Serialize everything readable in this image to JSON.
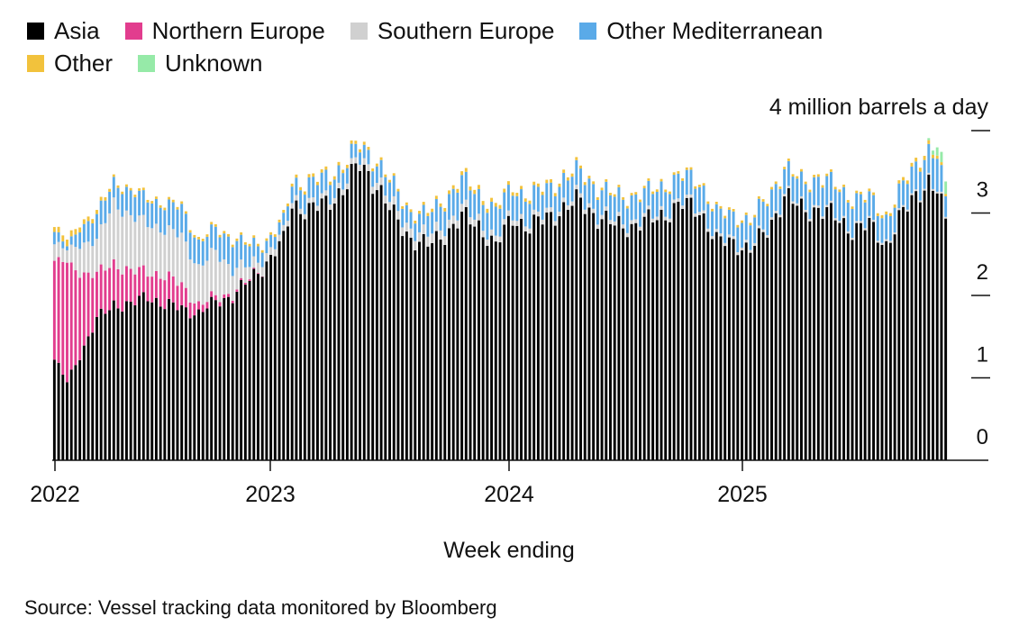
{
  "legend": [
    {
      "label": "Asia",
      "color": "#000000"
    },
    {
      "label": "Northern Europe",
      "color": "#e23d8e"
    },
    {
      "label": "Southern Europe",
      "color": "#d0d0d0"
    },
    {
      "label": "Other Mediterranean",
      "color": "#5aaae8"
    },
    {
      "label": "Other",
      "color": "#f2c23c"
    },
    {
      "label": "Unknown",
      "color": "#96eaa8"
    }
  ],
  "source": "Source: Vessel tracking data monitored by Bloomberg",
  "chart_data": {
    "type": "bar",
    "stacked": true,
    "title": "",
    "unit_label": "4 million barrels a day",
    "xlabel": "Week ending",
    "ylabel": "",
    "ylim": [
      0,
      4
    ],
    "yticks": [
      0,
      1,
      2,
      3,
      4
    ],
    "ytick_labels": [
      "0",
      "1",
      "2",
      "3",
      ""
    ],
    "xtick_labels": [
      "2022",
      "2023",
      "2024",
      "2025"
    ],
    "x_range": [
      "2022-01",
      "2025-11"
    ],
    "grid": false,
    "legend_position": "top-left",
    "series": [
      {
        "name": "Asia",
        "color": "#000000",
        "anchors": [
          [
            0,
            1.22
          ],
          [
            3,
            0.95
          ],
          [
            6,
            1.28
          ],
          [
            10,
            1.7
          ],
          [
            14,
            1.9
          ],
          [
            18,
            1.88
          ],
          [
            22,
            2.0
          ],
          [
            26,
            1.88
          ],
          [
            30,
            1.85
          ],
          [
            34,
            1.78
          ],
          [
            38,
            1.92
          ],
          [
            42,
            2.0
          ],
          [
            46,
            2.18
          ],
          [
            50,
            2.4
          ],
          [
            52,
            2.55
          ],
          [
            54,
            2.65
          ],
          [
            56,
            3.1
          ],
          [
            60,
            3.05
          ],
          [
            64,
            3.1
          ],
          [
            68,
            3.3
          ],
          [
            72,
            3.58
          ],
          [
            76,
            3.35
          ],
          [
            80,
            2.95
          ],
          [
            84,
            2.7
          ],
          [
            88,
            2.6
          ],
          [
            92,
            2.75
          ],
          [
            96,
            2.95
          ],
          [
            100,
            2.85
          ],
          [
            104,
            2.6
          ],
          [
            108,
            2.95
          ],
          [
            112,
            2.82
          ],
          [
            116,
            2.95
          ],
          [
            120,
            3.05
          ],
          [
            124,
            3.15
          ],
          [
            128,
            2.95
          ],
          [
            132,
            2.85
          ],
          [
            136,
            2.85
          ],
          [
            140,
            2.9
          ],
          [
            144,
            3.0
          ],
          [
            148,
            3.1
          ],
          [
            152,
            3.05
          ],
          [
            156,
            2.65
          ],
          [
            160,
            2.65
          ],
          [
            164,
            2.55
          ],
          [
            168,
            2.8
          ],
          [
            172,
            3.2
          ],
          [
            176,
            3.05
          ],
          [
            180,
            3.05
          ],
          [
            184,
            2.95
          ],
          [
            188,
            2.8
          ],
          [
            192,
            2.85
          ],
          [
            196,
            2.62
          ],
          [
            200,
            3.0
          ],
          [
            204,
            3.3
          ],
          [
            206,
            3.38
          ],
          [
            208,
            3.25
          ],
          [
            210,
            2.9
          ]
        ]
      },
      {
        "name": "Northern Europe",
        "color": "#e23d8e",
        "anchors": [
          [
            0,
            1.2
          ],
          [
            3,
            1.45
          ],
          [
            6,
            1.0
          ],
          [
            10,
            0.55
          ],
          [
            14,
            0.5
          ],
          [
            18,
            0.4
          ],
          [
            22,
            0.3
          ],
          [
            26,
            0.35
          ],
          [
            30,
            0.28
          ],
          [
            34,
            0.1
          ],
          [
            38,
            0.06
          ],
          [
            42,
            0.03
          ],
          [
            46,
            0.02
          ],
          [
            50,
            0.0
          ],
          [
            210,
            0.0
          ]
        ]
      },
      {
        "name": "Southern Europe",
        "color": "#d0d0d0",
        "anchors": [
          [
            0,
            0.2
          ],
          [
            3,
            0.15
          ],
          [
            6,
            0.35
          ],
          [
            10,
            0.4
          ],
          [
            14,
            0.75
          ],
          [
            18,
            0.65
          ],
          [
            22,
            0.6
          ],
          [
            26,
            0.55
          ],
          [
            30,
            0.6
          ],
          [
            34,
            0.45
          ],
          [
            38,
            0.55
          ],
          [
            42,
            0.3
          ],
          [
            46,
            0.15
          ],
          [
            50,
            0.1
          ],
          [
            54,
            0.07
          ],
          [
            60,
            0.06
          ],
          [
            70,
            0.07
          ],
          [
            80,
            0.1
          ],
          [
            88,
            0.12
          ],
          [
            100,
            0.08
          ],
          [
            110,
            0.06
          ],
          [
            130,
            0.05
          ],
          [
            150,
            0.04
          ],
          [
            170,
            0.03
          ],
          [
            210,
            0.02
          ]
        ]
      },
      {
        "name": "Other Mediterranean",
        "color": "#5aaae8",
        "anchors": [
          [
            0,
            0.15
          ],
          [
            3,
            0.05
          ],
          [
            6,
            0.2
          ],
          [
            10,
            0.3
          ],
          [
            14,
            0.25
          ],
          [
            18,
            0.3
          ],
          [
            22,
            0.3
          ],
          [
            26,
            0.3
          ],
          [
            30,
            0.35
          ],
          [
            34,
            0.3
          ],
          [
            38,
            0.28
          ],
          [
            42,
            0.35
          ],
          [
            46,
            0.25
          ],
          [
            50,
            0.15
          ],
          [
            54,
            0.15
          ],
          [
            56,
            0.2
          ],
          [
            60,
            0.25
          ],
          [
            64,
            0.25
          ],
          [
            68,
            0.2
          ],
          [
            72,
            0.15
          ],
          [
            76,
            0.2
          ],
          [
            80,
            0.25
          ],
          [
            84,
            0.2
          ],
          [
            88,
            0.25
          ],
          [
            92,
            0.3
          ],
          [
            96,
            0.35
          ],
          [
            100,
            0.3
          ],
          [
            104,
            0.35
          ],
          [
            108,
            0.3
          ],
          [
            112,
            0.3
          ],
          [
            116,
            0.3
          ],
          [
            120,
            0.3
          ],
          [
            124,
            0.3
          ],
          [
            128,
            0.3
          ],
          [
            132,
            0.3
          ],
          [
            136,
            0.3
          ],
          [
            140,
            0.3
          ],
          [
            144,
            0.3
          ],
          [
            148,
            0.3
          ],
          [
            152,
            0.3
          ],
          [
            156,
            0.3
          ],
          [
            160,
            0.3
          ],
          [
            164,
            0.3
          ],
          [
            168,
            0.35
          ],
          [
            172,
            0.3
          ],
          [
            176,
            0.3
          ],
          [
            180,
            0.35
          ],
          [
            184,
            0.35
          ],
          [
            188,
            0.35
          ],
          [
            192,
            0.3
          ],
          [
            196,
            0.3
          ],
          [
            200,
            0.3
          ],
          [
            204,
            0.35
          ],
          [
            206,
            0.35
          ],
          [
            208,
            0.4
          ],
          [
            210,
            0.25
          ]
        ]
      },
      {
        "name": "Other",
        "color": "#f2c23c",
        "anchors": [
          [
            0,
            0.06
          ],
          [
            3,
            0.08
          ],
          [
            6,
            0.06
          ],
          [
            10,
            0.05
          ],
          [
            14,
            0.03
          ],
          [
            20,
            0.03
          ],
          [
            30,
            0.03
          ],
          [
            40,
            0.03
          ],
          [
            50,
            0.03
          ],
          [
            60,
            0.04
          ],
          [
            70,
            0.04
          ],
          [
            80,
            0.03
          ],
          [
            90,
            0.04
          ],
          [
            100,
            0.05
          ],
          [
            110,
            0.04
          ],
          [
            120,
            0.04
          ],
          [
            130,
            0.03
          ],
          [
            140,
            0.03
          ],
          [
            150,
            0.03
          ],
          [
            160,
            0.03
          ],
          [
            170,
            0.03
          ],
          [
            180,
            0.03
          ],
          [
            190,
            0.03
          ],
          [
            200,
            0.04
          ],
          [
            205,
            0.05
          ],
          [
            210,
            0.03
          ]
        ]
      },
      {
        "name": "Unknown",
        "color": "#96eaa8",
        "anchors": [
          [
            0,
            0.0
          ],
          [
            205,
            0.0
          ],
          [
            207,
            0.05
          ],
          [
            208,
            0.1
          ],
          [
            210,
            0.15
          ]
        ]
      }
    ]
  }
}
